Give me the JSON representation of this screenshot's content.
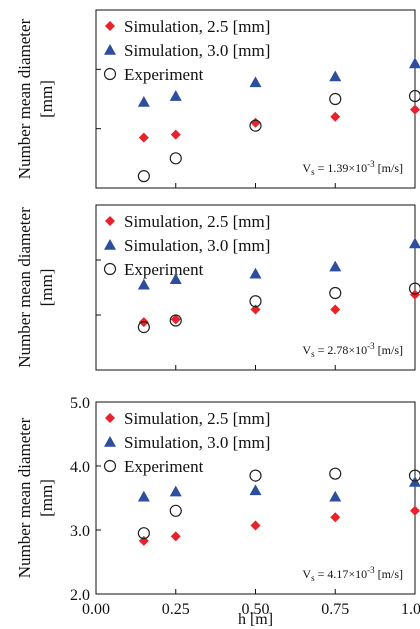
{
  "chart_data": [
    {
      "type": "scatter",
      "ylabel_lines": [
        "Number mean diameter",
        "[mm]"
      ],
      "annotation": {
        "var": "V",
        "sub": "s",
        "eq": " = 1.39×10",
        "sup": "-3",
        "unit": " [m/s]"
      },
      "x_range": [
        0.0,
        1.0
      ],
      "y_range": [
        2.0,
        5.0
      ],
      "show_y_ticklabels": false,
      "show_x_ticklabels": false,
      "series": [
        {
          "name": "Simulation, 2.5 [mm]",
          "marker": "diamond",
          "color": "#e8212a",
          "x": [
            0.15,
            0.25,
            0.5,
            0.75,
            1.0
          ],
          "y": [
            2.85,
            2.9,
            3.1,
            3.2,
            3.32
          ]
        },
        {
          "name": "Simulation, 3.0 [mm]",
          "marker": "triangle",
          "color": "#2d4e9e",
          "x": [
            0.15,
            0.25,
            0.5,
            0.75,
            1.0
          ],
          "y": [
            3.45,
            3.55,
            3.78,
            3.88,
            4.1
          ]
        },
        {
          "name": "Experiment",
          "marker": "circle",
          "color": "#222222",
          "x": [
            0.15,
            0.25,
            0.5,
            0.75,
            1.0
          ],
          "y": [
            2.2,
            2.5,
            3.05,
            3.5,
            3.55
          ]
        }
      ]
    },
    {
      "type": "scatter",
      "ylabel_lines": [
        "Number mean diameter",
        "[mm]"
      ],
      "annotation": {
        "var": "V",
        "sub": "s",
        "eq": " = 2.78×10",
        "sup": "-3",
        "unit": " [m/s]"
      },
      "x_range": [
        0.0,
        1.0
      ],
      "y_range": [
        2.0,
        5.0
      ],
      "show_y_ticklabels": false,
      "show_x_ticklabels": false,
      "series": [
        {
          "name": "Simulation, 2.5 [mm]",
          "marker": "diamond",
          "color": "#e8212a",
          "x": [
            0.15,
            0.25,
            0.5,
            0.75,
            1.0
          ],
          "y": [
            2.87,
            2.92,
            3.1,
            3.1,
            3.37
          ]
        },
        {
          "name": "Simulation, 3.0 [mm]",
          "marker": "triangle",
          "color": "#2d4e9e",
          "x": [
            0.15,
            0.25,
            0.5,
            0.75,
            1.0
          ],
          "y": [
            3.55,
            3.65,
            3.75,
            3.88,
            4.3
          ]
        },
        {
          "name": "Experiment",
          "marker": "circle",
          "color": "#222222",
          "x": [
            0.15,
            0.25,
            0.5,
            0.75,
            1.0
          ],
          "y": [
            2.78,
            2.9,
            3.25,
            3.4,
            3.48
          ]
        }
      ]
    },
    {
      "type": "scatter",
      "ylabel_lines": [
        "Number mean diameter",
        "[mm]"
      ],
      "annotation": {
        "var": "V",
        "sub": "s",
        "eq": " = 4.17×10",
        "sup": "-3",
        "unit": " [m/s]"
      },
      "xlabel": "h [m]",
      "x_range": [
        0.0,
        1.0
      ],
      "y_range": [
        2.0,
        5.0
      ],
      "x_ticks": [
        "0.00",
        "0.25",
        "0.50",
        "0.75",
        "1.00"
      ],
      "y_ticks": [
        "2.0",
        "3.0",
        "4.0",
        "5.0"
      ],
      "show_y_ticklabels": true,
      "show_x_ticklabels": true,
      "series": [
        {
          "name": "Simulation, 2.5 [mm]",
          "marker": "diamond",
          "color": "#e8212a",
          "x": [
            0.15,
            0.25,
            0.5,
            0.75,
            1.0
          ],
          "y": [
            2.83,
            2.9,
            3.07,
            3.2,
            3.3
          ]
        },
        {
          "name": "Simulation, 3.0 [mm]",
          "marker": "triangle",
          "color": "#2d4e9e",
          "x": [
            0.15,
            0.25,
            0.5,
            0.75,
            1.0
          ],
          "y": [
            3.52,
            3.6,
            3.62,
            3.52,
            3.75
          ]
        },
        {
          "name": "Experiment",
          "marker": "circle",
          "color": "#222222",
          "x": [
            0.15,
            0.25,
            0.5,
            0.75,
            1.0
          ],
          "y": [
            2.95,
            3.3,
            3.85,
            3.88,
            3.85
          ]
        }
      ]
    }
  ]
}
